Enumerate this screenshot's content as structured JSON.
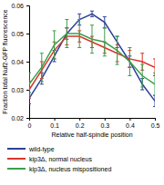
{
  "chart_data": {
    "type": "line",
    "x_label": "Relative half-spindle position",
    "y_label": "Fraction total Nuf2-GFP fluorescence",
    "x": [
      0,
      0.05,
      0.1,
      0.15,
      0.2,
      0.25,
      0.3,
      0.35,
      0.4,
      0.45,
      0.5
    ],
    "xlim": [
      0,
      0.5
    ],
    "xticks": [
      0,
      0.1,
      0.2,
      0.3,
      0.4,
      0.5
    ],
    "ylim": [
      0.02,
      0.06
    ],
    "yticks": [
      0.02,
      0.03,
      0.04,
      0.05,
      0.06
    ],
    "legend": "bottom",
    "series": [
      {
        "name": "wild-type",
        "color": "#2b3f96",
        "values": [
          0.027,
          0.034,
          0.042,
          0.05,
          0.055,
          0.057,
          0.054,
          0.047,
          0.04,
          0.032,
          0.026
        ],
        "errors": [
          0.002,
          0.002,
          0.002,
          0.002,
          0.002,
          0.001,
          0.002,
          0.002,
          0.002,
          0.002,
          0.002
        ]
      },
      {
        "name": "kip3Δ, normal nucleus",
        "color": "#d9342b",
        "values": [
          0.03,
          0.037,
          0.044,
          0.049,
          0.049,
          0.047,
          0.045,
          0.043,
          0.041,
          0.04,
          0.038
        ],
        "errors": [
          0.003,
          0.003,
          0.003,
          0.003,
          0.002,
          0.002,
          0.002,
          0.003,
          0.003,
          0.003,
          0.003
        ]
      },
      {
        "name": "kip3Δ, nucleus mispositioned",
        "color": "#3aa04a",
        "values": [
          0.032,
          0.038,
          0.046,
          0.05,
          0.05,
          0.048,
          0.047,
          0.044,
          0.04,
          0.035,
          0.032
        ],
        "errors": [
          0.004,
          0.005,
          0.005,
          0.005,
          0.005,
          0.005,
          0.005,
          0.005,
          0.005,
          0.004,
          0.004
        ]
      }
    ]
  }
}
